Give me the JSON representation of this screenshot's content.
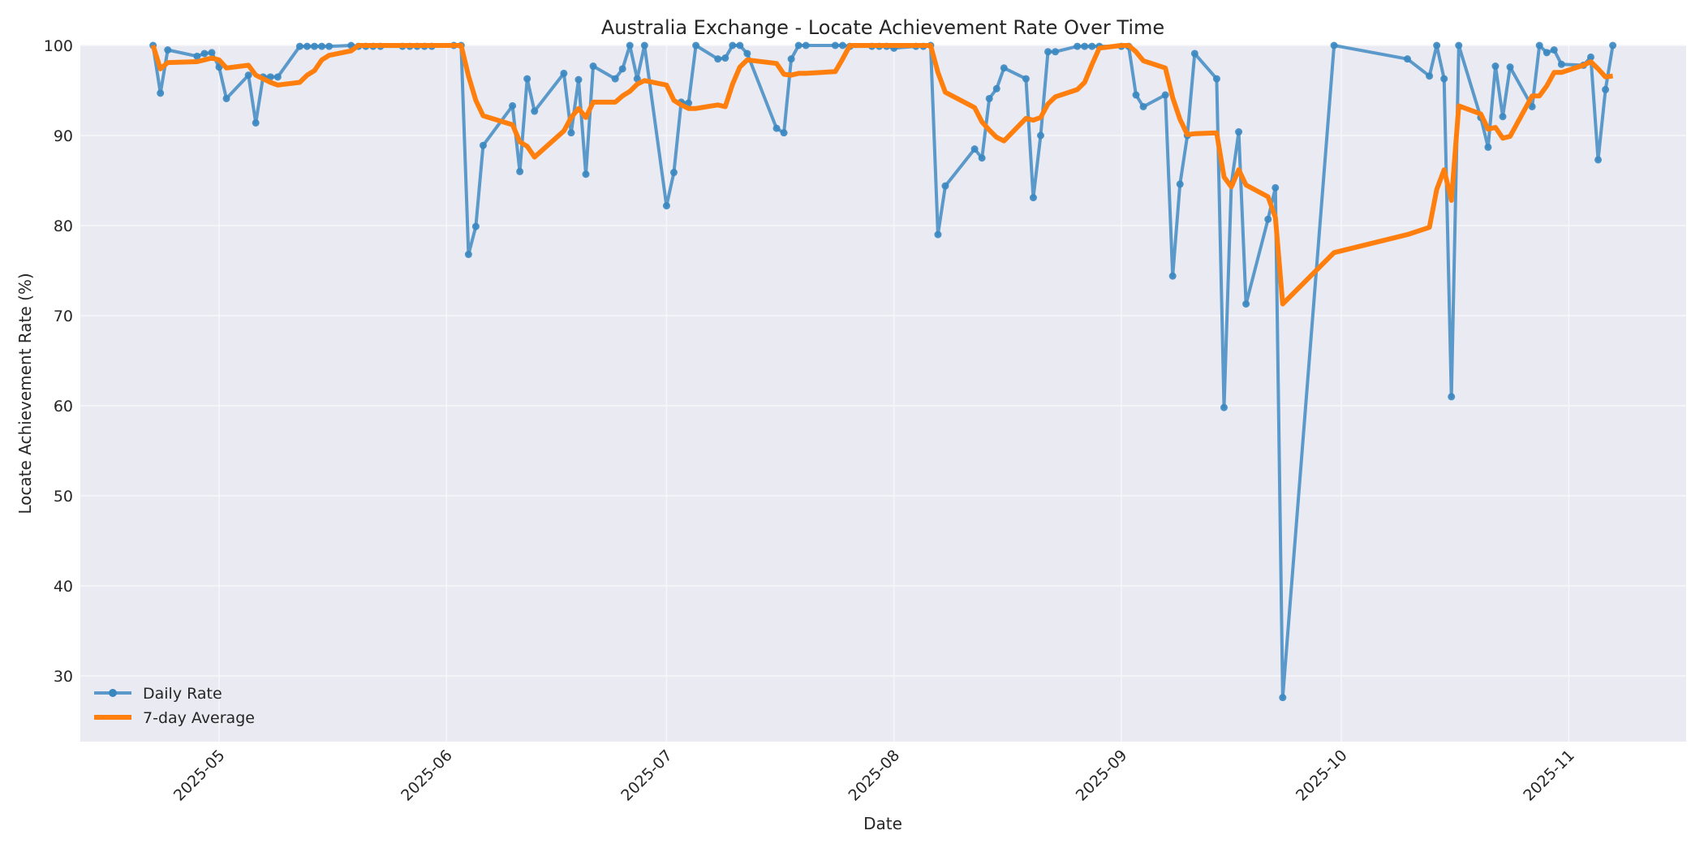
{
  "chart_data": {
    "type": "line",
    "title": "Australia Exchange - Locate Achievement Rate Over Time",
    "xlabel": "Date",
    "ylabel": "Locate Achievement Rate (%)",
    "ylim": [
      22.5,
      100
    ],
    "xlim": [
      "2025-04-13",
      "2025-11-21"
    ],
    "grid": true,
    "legend_position": "lower left",
    "y_ticks": [
      30,
      40,
      50,
      60,
      70,
      80,
      90,
      100
    ],
    "x_ticks": [
      "2025-05",
      "2025-06",
      "2025-07",
      "2025-08",
      "2025-09",
      "2025-10",
      "2025-11"
    ],
    "x_tick_dates": [
      "2025-05-01",
      "2025-06-01",
      "2025-07-01",
      "2025-08-01",
      "2025-09-01",
      "2025-10-01",
      "2025-11-01"
    ],
    "colors": {
      "daily": "#3a87c0",
      "avg": "#ff7f0e",
      "plot_bg": "#eaeaf2",
      "grid": "#f5f5f8"
    },
    "series": [
      {
        "name": "Daily Rate",
        "marker": "circle",
        "points": [
          [
            "2025-04-22",
            100
          ],
          [
            "2025-04-23",
            94.7
          ],
          [
            "2025-04-24",
            99.5
          ],
          [
            "2025-04-28",
            98.8
          ],
          [
            "2025-04-29",
            99.1
          ],
          [
            "2025-04-30",
            99.2
          ],
          [
            "2025-05-01",
            97.6
          ],
          [
            "2025-05-02",
            94.1
          ],
          [
            "2025-05-05",
            96.7
          ],
          [
            "2025-05-06",
            91.4
          ],
          [
            "2025-05-07",
            96.5
          ],
          [
            "2025-05-08",
            96.5
          ],
          [
            "2025-05-09",
            96.5
          ],
          [
            "2025-05-12",
            99.9
          ],
          [
            "2025-05-13",
            99.9
          ],
          [
            "2025-05-14",
            99.9
          ],
          [
            "2025-05-15",
            99.9
          ],
          [
            "2025-05-16",
            99.9
          ],
          [
            "2025-05-19",
            100
          ],
          [
            "2025-05-20",
            99.9
          ],
          [
            "2025-05-21",
            99.9
          ],
          [
            "2025-05-22",
            99.9
          ],
          [
            "2025-05-23",
            99.9
          ],
          [
            "2025-05-26",
            99.9
          ],
          [
            "2025-05-27",
            99.9
          ],
          [
            "2025-05-28",
            99.9
          ],
          [
            "2025-05-29",
            99.9
          ],
          [
            "2025-05-30",
            99.9
          ],
          [
            "2025-06-02",
            100
          ],
          [
            "2025-06-03",
            100
          ],
          [
            "2025-06-04",
            76.8
          ],
          [
            "2025-06-05",
            79.9
          ],
          [
            "2025-06-06",
            88.9
          ],
          [
            "2025-06-10",
            93.3
          ],
          [
            "2025-06-11",
            86.0
          ],
          [
            "2025-06-12",
            96.3
          ],
          [
            "2025-06-13",
            92.7
          ],
          [
            "2025-06-17",
            96.9
          ],
          [
            "2025-06-18",
            90.3
          ],
          [
            "2025-06-19",
            96.2
          ],
          [
            "2025-06-20",
            85.7
          ],
          [
            "2025-06-21",
            97.7
          ],
          [
            "2025-06-24",
            96.3
          ],
          [
            "2025-06-25",
            97.4
          ],
          [
            "2025-06-26",
            100
          ],
          [
            "2025-06-27",
            96.3
          ],
          [
            "2025-06-28",
            100
          ],
          [
            "2025-07-01",
            82.2
          ],
          [
            "2025-07-02",
            85.9
          ],
          [
            "2025-07-03",
            93.7
          ],
          [
            "2025-07-04",
            93.6
          ],
          [
            "2025-07-05",
            100
          ],
          [
            "2025-07-08",
            98.5
          ],
          [
            "2025-07-09",
            98.6
          ],
          [
            "2025-07-10",
            100
          ],
          [
            "2025-07-11",
            100
          ],
          [
            "2025-07-12",
            99.1
          ],
          [
            "2025-07-16",
            90.8
          ],
          [
            "2025-07-17",
            90.3
          ],
          [
            "2025-07-18",
            98.5
          ],
          [
            "2025-07-19",
            100
          ],
          [
            "2025-07-20",
            100
          ],
          [
            "2025-07-24",
            100
          ],
          [
            "2025-07-25",
            100
          ],
          [
            "2025-07-26",
            99.9
          ],
          [
            "2025-07-29",
            99.9
          ],
          [
            "2025-07-30",
            99.9
          ],
          [
            "2025-07-31",
            99.9
          ],
          [
            "2025-08-01",
            99.7
          ],
          [
            "2025-08-04",
            99.9
          ],
          [
            "2025-08-05",
            99.9
          ],
          [
            "2025-08-06",
            100
          ],
          [
            "2025-08-07",
            79.0
          ],
          [
            "2025-08-08",
            84.4
          ],
          [
            "2025-08-12",
            88.5
          ],
          [
            "2025-08-13",
            87.5
          ],
          [
            "2025-08-14",
            94.1
          ],
          [
            "2025-08-15",
            95.2
          ],
          [
            "2025-08-16",
            97.5
          ],
          [
            "2025-08-19",
            96.3
          ],
          [
            "2025-08-20",
            83.1
          ],
          [
            "2025-08-21",
            90.0
          ],
          [
            "2025-08-22",
            99.3
          ],
          [
            "2025-08-23",
            99.3
          ],
          [
            "2025-08-26",
            99.9
          ],
          [
            "2025-08-27",
            99.9
          ],
          [
            "2025-08-28",
            99.9
          ],
          [
            "2025-08-29",
            99.9
          ],
          [
            "2025-09-01",
            99.9
          ],
          [
            "2025-09-02",
            99.9
          ],
          [
            "2025-09-03",
            94.5
          ],
          [
            "2025-09-04",
            93.2
          ],
          [
            "2025-09-07",
            94.5
          ],
          [
            "2025-09-08",
            74.4
          ],
          [
            "2025-09-09",
            84.6
          ],
          [
            "2025-09-10",
            90.0
          ],
          [
            "2025-09-11",
            99.1
          ],
          [
            "2025-09-14",
            96.3
          ],
          [
            "2025-09-15",
            59.8
          ],
          [
            "2025-09-16",
            84.6
          ],
          [
            "2025-09-17",
            90.4
          ],
          [
            "2025-09-18",
            71.3
          ],
          [
            "2025-09-21",
            80.7
          ],
          [
            "2025-09-22",
            84.2
          ],
          [
            "2025-09-23",
            27.6
          ],
          [
            "2025-09-30",
            100
          ],
          [
            "2025-10-10",
            98.5
          ],
          [
            "2025-10-13",
            96.6
          ],
          [
            "2025-10-14",
            100
          ],
          [
            "2025-10-15",
            96.3
          ],
          [
            "2025-10-16",
            61.0
          ],
          [
            "2025-10-17",
            100
          ],
          [
            "2025-10-20",
            92.0
          ],
          [
            "2025-10-21",
            88.7
          ],
          [
            "2025-10-22",
            97.7
          ],
          [
            "2025-10-23",
            92.1
          ],
          [
            "2025-10-24",
            97.6
          ],
          [
            "2025-10-27",
            93.2
          ],
          [
            "2025-10-28",
            100
          ],
          [
            "2025-10-29",
            99.2
          ],
          [
            "2025-10-30",
            99.5
          ],
          [
            "2025-10-31",
            97.9
          ],
          [
            "2025-11-03",
            97.8
          ],
          [
            "2025-11-04",
            98.7
          ],
          [
            "2025-11-05",
            87.3
          ],
          [
            "2025-11-06",
            95.1
          ],
          [
            "2025-11-07",
            100
          ]
        ]
      },
      {
        "name": "7-day Average",
        "marker": "none",
        "points": [
          [
            "2025-04-22",
            100
          ],
          [
            "2025-04-23",
            97.4
          ],
          [
            "2025-04-24",
            98.1
          ],
          [
            "2025-04-28",
            98.2
          ],
          [
            "2025-04-29",
            98.4
          ],
          [
            "2025-04-30",
            98.6
          ],
          [
            "2025-05-01",
            98.4
          ],
          [
            "2025-05-02",
            97.5
          ],
          [
            "2025-05-05",
            97.8
          ],
          [
            "2025-05-06",
            96.7
          ],
          [
            "2025-05-07",
            96.3
          ],
          [
            "2025-05-08",
            95.9
          ],
          [
            "2025-05-09",
            95.6
          ],
          [
            "2025-05-12",
            95.9
          ],
          [
            "2025-05-13",
            96.7
          ],
          [
            "2025-05-14",
            97.2
          ],
          [
            "2025-05-15",
            98.4
          ],
          [
            "2025-05-16",
            98.9
          ],
          [
            "2025-05-19",
            99.4
          ],
          [
            "2025-05-20",
            100
          ],
          [
            "2025-05-21",
            100
          ],
          [
            "2025-05-22",
            100
          ],
          [
            "2025-05-23",
            100
          ],
          [
            "2025-05-26",
            100
          ],
          [
            "2025-05-27",
            100
          ],
          [
            "2025-05-28",
            100
          ],
          [
            "2025-05-29",
            100
          ],
          [
            "2025-05-30",
            100
          ],
          [
            "2025-06-02",
            100
          ],
          [
            "2025-06-03",
            100
          ],
          [
            "2025-06-04",
            96.6
          ],
          [
            "2025-06-05",
            93.9
          ],
          [
            "2025-06-06",
            92.2
          ],
          [
            "2025-06-10",
            91.2
          ],
          [
            "2025-06-11",
            89.3
          ],
          [
            "2025-06-12",
            88.8
          ],
          [
            "2025-06-13",
            87.6
          ],
          [
            "2025-06-17",
            90.5
          ],
          [
            "2025-06-18",
            92.0
          ],
          [
            "2025-06-19",
            93.0
          ],
          [
            "2025-06-20",
            92.0
          ],
          [
            "2025-06-21",
            93.7
          ],
          [
            "2025-06-24",
            93.7
          ],
          [
            "2025-06-25",
            94.4
          ],
          [
            "2025-06-26",
            94.9
          ],
          [
            "2025-06-27",
            95.7
          ],
          [
            "2025-06-28",
            96.1
          ],
          [
            "2025-07-01",
            95.6
          ],
          [
            "2025-07-02",
            93.9
          ],
          [
            "2025-07-03",
            93.4
          ],
          [
            "2025-07-04",
            93.0
          ],
          [
            "2025-07-05",
            93.0
          ],
          [
            "2025-07-08",
            93.4
          ],
          [
            "2025-07-09",
            93.2
          ],
          [
            "2025-07-10",
            95.7
          ],
          [
            "2025-07-11",
            97.6
          ],
          [
            "2025-07-12",
            98.4
          ],
          [
            "2025-07-16",
            98.0
          ],
          [
            "2025-07-17",
            96.8
          ],
          [
            "2025-07-18",
            96.7
          ],
          [
            "2025-07-19",
            96.9
          ],
          [
            "2025-07-20",
            96.9
          ],
          [
            "2025-07-24",
            97.1
          ],
          [
            "2025-07-25",
            98.5
          ],
          [
            "2025-07-26",
            100
          ],
          [
            "2025-07-29",
            100
          ],
          [
            "2025-07-30",
            100
          ],
          [
            "2025-07-31",
            100
          ],
          [
            "2025-08-01",
            100
          ],
          [
            "2025-08-04",
            100
          ],
          [
            "2025-08-05",
            100
          ],
          [
            "2025-08-06",
            100
          ],
          [
            "2025-08-07",
            97.0
          ],
          [
            "2025-08-08",
            94.8
          ],
          [
            "2025-08-12",
            93.1
          ],
          [
            "2025-08-13",
            91.5
          ],
          [
            "2025-08-14",
            90.6
          ],
          [
            "2025-08-15",
            89.8
          ],
          [
            "2025-08-16",
            89.4
          ],
          [
            "2025-08-19",
            91.9
          ],
          [
            "2025-08-20",
            91.7
          ],
          [
            "2025-08-21",
            92.0
          ],
          [
            "2025-08-22",
            93.5
          ],
          [
            "2025-08-23",
            94.3
          ],
          [
            "2025-08-26",
            95.1
          ],
          [
            "2025-08-27",
            95.9
          ],
          [
            "2025-08-28",
            97.9
          ],
          [
            "2025-08-29",
            99.7
          ],
          [
            "2025-09-01",
            100
          ],
          [
            "2025-09-02",
            100
          ],
          [
            "2025-09-03",
            99.3
          ],
          [
            "2025-09-04",
            98.3
          ],
          [
            "2025-09-07",
            97.5
          ],
          [
            "2025-09-08",
            94.2
          ],
          [
            "2025-09-09",
            91.8
          ],
          [
            "2025-09-10",
            90.1
          ],
          [
            "2025-09-11",
            90.2
          ],
          [
            "2025-09-14",
            90.3
          ],
          [
            "2025-09-15",
            85.4
          ],
          [
            "2025-09-16",
            84.3
          ],
          [
            "2025-09-17",
            86.2
          ],
          [
            "2025-09-18",
            84.5
          ],
          [
            "2025-09-21",
            83.2
          ],
          [
            "2025-09-22",
            80.9
          ],
          [
            "2025-09-23",
            71.3
          ],
          [
            "2025-09-30",
            77.0
          ],
          [
            "2025-10-10",
            79.0
          ],
          [
            "2025-10-13",
            79.8
          ],
          [
            "2025-10-14",
            84.0
          ],
          [
            "2025-10-15",
            86.2
          ],
          [
            "2025-10-16",
            82.8
          ],
          [
            "2025-10-17",
            93.3
          ],
          [
            "2025-10-20",
            92.4
          ],
          [
            "2025-10-21",
            90.7
          ],
          [
            "2025-10-22",
            90.9
          ],
          [
            "2025-10-23",
            89.7
          ],
          [
            "2025-10-24",
            89.9
          ],
          [
            "2025-10-27",
            94.4
          ],
          [
            "2025-10-28",
            94.4
          ],
          [
            "2025-10-29",
            95.5
          ],
          [
            "2025-10-30",
            97.0
          ],
          [
            "2025-10-31",
            97.0
          ],
          [
            "2025-11-03",
            97.8
          ],
          [
            "2025-11-04",
            98.2
          ],
          [
            "2025-11-05",
            97.4
          ],
          [
            "2025-11-06",
            96.5
          ],
          [
            "2025-11-07",
            96.6
          ]
        ]
      }
    ]
  }
}
